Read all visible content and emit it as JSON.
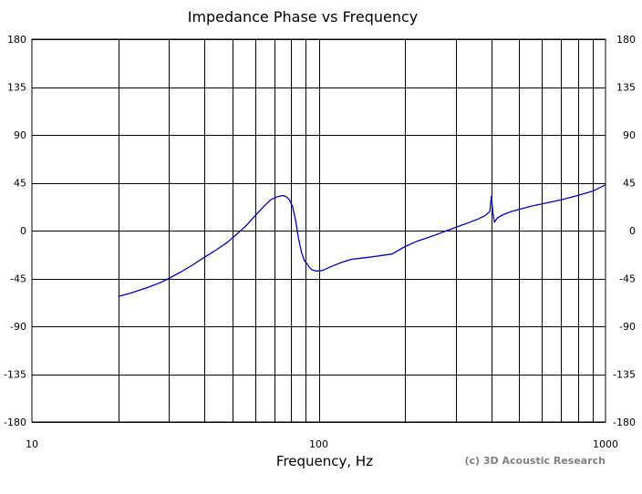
{
  "chart_data": {
    "type": "line",
    "title": "Impedance Phase vs Frequency",
    "xlabel": "Frequency, Hz",
    "ylabel": "",
    "credit": "(c) 3D Acoustic Research",
    "x_scale": "log",
    "xlim": [
      10,
      1000
    ],
    "ylim": [
      -180,
      180
    ],
    "x_tick_labels": [
      "10",
      "100",
      "1000"
    ],
    "y_ticks": [
      180,
      135,
      90,
      45,
      0,
      -45,
      -90,
      -135,
      -180
    ],
    "y_tick_labels": [
      "180",
      "135",
      "90",
      "45",
      "0",
      "-45",
      "-90",
      "-135",
      "-180"
    ],
    "grid": true,
    "colors": {
      "line": "#0000c0",
      "grid": "#000000"
    },
    "series": [
      {
        "x": [
          20,
          22,
          25,
          28,
          30,
          33,
          36,
          40,
          44,
          48,
          52,
          56,
          60,
          64,
          68,
          72,
          75,
          77,
          79,
          81,
          83,
          85,
          87,
          89,
          91,
          93,
          95,
          98,
          101,
          104,
          110,
          120,
          130,
          140,
          150,
          160,
          170,
          180,
          200,
          220,
          250,
          280,
          300,
          330,
          360,
          380,
          395,
          400,
          405,
          410,
          420,
          440,
          470,
          500,
          550,
          600,
          700,
          800,
          900,
          1000
        ],
        "y": [
          -62,
          -59,
          -54,
          -49,
          -45,
          -39,
          -33,
          -25,
          -18,
          -11,
          -3,
          5,
          14,
          22,
          29,
          32,
          33,
          32,
          29,
          23,
          10,
          -7,
          -20,
          -28,
          -31,
          -35,
          -37,
          -38,
          -38,
          -37,
          -34,
          -30,
          -27,
          -26,
          -25,
          -24,
          -23,
          -22,
          -15,
          -10,
          -5,
          0,
          3,
          7,
          11,
          14,
          18,
          32,
          17,
          8,
          12,
          15,
          18,
          20,
          23,
          25,
          29,
          33,
          37,
          43
        ]
      }
    ]
  }
}
